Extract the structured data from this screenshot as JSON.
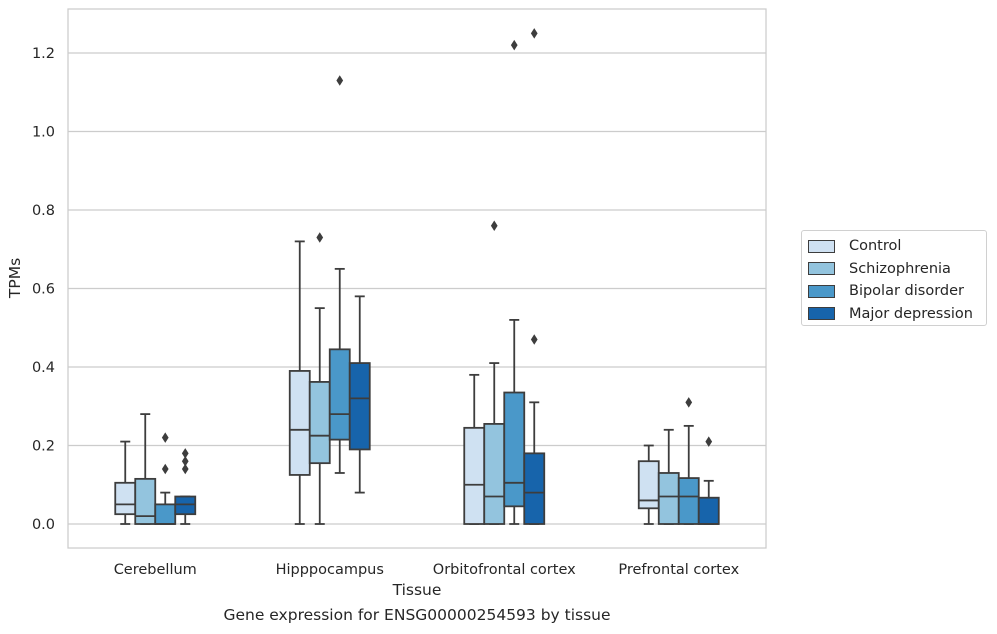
{
  "caption": "Gene expression for ENSG00000254593 by tissue",
  "chart_data": {
    "type": "box",
    "xlabel": "Tissue",
    "ylabel": "TPMs",
    "ylim": [
      -0.06,
      1.32
    ],
    "yticks": [
      0.0,
      0.2,
      0.4,
      0.6,
      0.8,
      1.0,
      1.2
    ],
    "ytick_labels": [
      "0.0",
      "0.2",
      "0.4",
      "0.6",
      "0.8",
      "1.0",
      "1.2"
    ],
    "grid": true,
    "legend_position": "right",
    "categories": [
      "Cerebellum",
      "Hipppocampus",
      "Orbitofrontal cortex",
      "Prefrontal cortex"
    ],
    "series": [
      {
        "name": "Control",
        "color": "#cfe1f2",
        "boxes": [
          {
            "whislo": 0.0,
            "q1": 0.025,
            "med": 0.05,
            "q3": 0.105,
            "whishi": 0.21,
            "fliers": []
          },
          {
            "whislo": 0.0,
            "q1": 0.125,
            "med": 0.24,
            "q3": 0.39,
            "whishi": 0.72,
            "fliers": []
          },
          {
            "whislo": 0.0,
            "q1": 0.0,
            "med": 0.1,
            "q3": 0.245,
            "whishi": 0.38,
            "fliers": []
          },
          {
            "whislo": 0.0,
            "q1": 0.04,
            "med": 0.06,
            "q3": 0.16,
            "whishi": 0.2,
            "fliers": []
          }
        ]
      },
      {
        "name": "Schizophrenia",
        "color": "#93c4de",
        "boxes": [
          {
            "whislo": 0.0,
            "q1": 0.0,
            "med": 0.02,
            "q3": 0.115,
            "whishi": 0.28,
            "fliers": []
          },
          {
            "whislo": 0.0,
            "q1": 0.155,
            "med": 0.225,
            "q3": 0.362,
            "whishi": 0.55,
            "fliers": [
              0.73
            ]
          },
          {
            "whislo": 0.0,
            "q1": 0.0,
            "med": 0.07,
            "q3": 0.255,
            "whishi": 0.41,
            "fliers": [
              0.76
            ]
          },
          {
            "whislo": 0.0,
            "q1": 0.0,
            "med": 0.07,
            "q3": 0.13,
            "whishi": 0.24,
            "fliers": []
          }
        ]
      },
      {
        "name": "Bipolar disorder",
        "color": "#4a98c9",
        "boxes": [
          {
            "whislo": 0.0,
            "q1": 0.0,
            "med": 0.0,
            "q3": 0.05,
            "whishi": 0.08,
            "fliers": [
              0.14,
              0.22
            ]
          },
          {
            "whislo": 0.13,
            "q1": 0.215,
            "med": 0.28,
            "q3": 0.445,
            "whishi": 0.65,
            "fliers": [
              1.13
            ]
          },
          {
            "whislo": 0.0,
            "q1": 0.045,
            "med": 0.105,
            "q3": 0.335,
            "whishi": 0.52,
            "fliers": [
              1.22
            ]
          },
          {
            "whislo": 0.0,
            "q1": 0.0,
            "med": 0.07,
            "q3": 0.117,
            "whishi": 0.25,
            "fliers": [
              0.31
            ]
          }
        ]
      },
      {
        "name": "Major depression",
        "color": "#1764ab",
        "boxes": [
          {
            "whislo": 0.0,
            "q1": 0.025,
            "med": 0.05,
            "q3": 0.07,
            "whishi": 0.07,
            "fliers": [
              0.14,
              0.16,
              0.18
            ]
          },
          {
            "whislo": 0.08,
            "q1": 0.19,
            "med": 0.32,
            "q3": 0.41,
            "whishi": 0.58,
            "fliers": []
          },
          {
            "whislo": 0.0,
            "q1": 0.0,
            "med": 0.08,
            "q3": 0.18,
            "whishi": 0.31,
            "fliers": [
              0.47,
              1.25
            ]
          },
          {
            "whislo": 0.0,
            "q1": 0.0,
            "med": 0.0,
            "q3": 0.067,
            "whishi": 0.11,
            "fliers": [
              0.21
            ]
          }
        ]
      }
    ]
  }
}
